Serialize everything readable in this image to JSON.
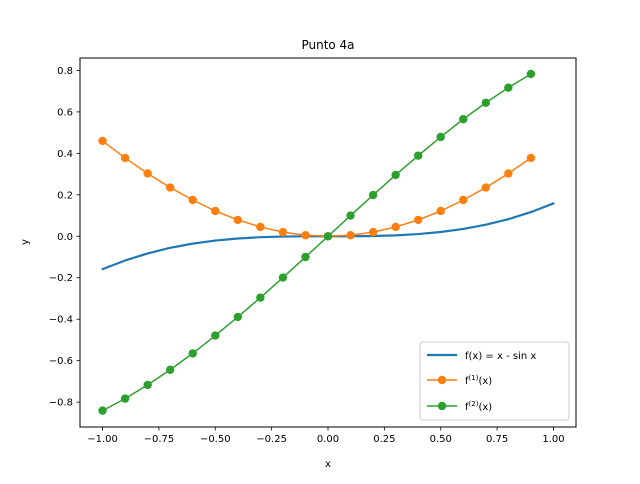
{
  "chart_data": {
    "type": "line",
    "title": "Punto 4a",
    "xlabel": "x",
    "ylabel": "y",
    "xlim": [
      -1.1,
      1.1
    ],
    "ylim": [
      -0.92,
      0.86
    ],
    "xticks": [
      -1.0,
      -0.75,
      -0.5,
      -0.25,
      0.0,
      0.25,
      0.5,
      0.75,
      1.0
    ],
    "xtick_labels": [
      "−1.00",
      "−0.75",
      "−0.50",
      "−0.25",
      "0.00",
      "0.25",
      "0.50",
      "0.75",
      "1.00"
    ],
    "yticks": [
      -0.8,
      -0.6,
      -0.4,
      -0.2,
      0.0,
      0.2,
      0.4,
      0.6,
      0.8
    ],
    "ytick_labels": [
      "−0.8",
      "−0.6",
      "−0.4",
      "−0.2",
      "0.0",
      "0.2",
      "0.4",
      "0.6",
      "0.8"
    ],
    "grid": false,
    "legend_position": "lower-right",
    "series": [
      {
        "name": "f(x) = x - sin x",
        "color": "#1f77b4",
        "marker": "none",
        "x": [
          -1.0,
          -0.9,
          -0.8,
          -0.7,
          -0.6,
          -0.5,
          -0.4,
          -0.3,
          -0.2,
          -0.1,
          0.0,
          0.1,
          0.2,
          0.3,
          0.4,
          0.5,
          0.6,
          0.7,
          0.8,
          0.9,
          1.0
        ],
        "y": [
          -0.1585,
          -0.1167,
          -0.0826,
          -0.0558,
          -0.0354,
          -0.0206,
          -0.0106,
          -0.0045,
          -0.0013,
          -0.0002,
          0.0,
          0.0002,
          0.0013,
          0.0045,
          0.0106,
          0.0206,
          0.0354,
          0.0558,
          0.0826,
          0.1167,
          0.1585
        ]
      },
      {
        "name_base": "f",
        "name_sup": "(1)",
        "name_suffix": "(x)",
        "color": "#ff7f0e",
        "marker": "circle",
        "x": [
          -1.0,
          -0.9,
          -0.8,
          -0.7,
          -0.6,
          -0.5,
          -0.4,
          -0.3,
          -0.2,
          -0.1,
          0.0,
          0.1,
          0.2,
          0.3,
          0.4,
          0.5,
          0.6,
          0.7,
          0.8,
          0.9
        ],
        "y": [
          0.46,
          0.378,
          0.303,
          0.235,
          0.175,
          0.122,
          0.079,
          0.045,
          0.02,
          0.005,
          0.0,
          0.005,
          0.02,
          0.045,
          0.079,
          0.122,
          0.175,
          0.235,
          0.303,
          0.378
        ]
      },
      {
        "name_base": "f",
        "name_sup": "(2)",
        "name_suffix": "(x)",
        "color": "#2ca02c",
        "marker": "circle",
        "x": [
          -1.0,
          -0.9,
          -0.8,
          -0.7,
          -0.6,
          -0.5,
          -0.4,
          -0.3,
          -0.2,
          -0.1,
          0.0,
          0.1,
          0.2,
          0.3,
          0.4,
          0.5,
          0.6,
          0.7,
          0.8,
          0.9
        ],
        "y": [
          -0.841,
          -0.783,
          -0.717,
          -0.644,
          -0.565,
          -0.479,
          -0.389,
          -0.296,
          -0.199,
          -0.1,
          0.0,
          0.1,
          0.199,
          0.296,
          0.389,
          0.479,
          0.565,
          0.644,
          0.717,
          0.783
        ]
      }
    ]
  }
}
